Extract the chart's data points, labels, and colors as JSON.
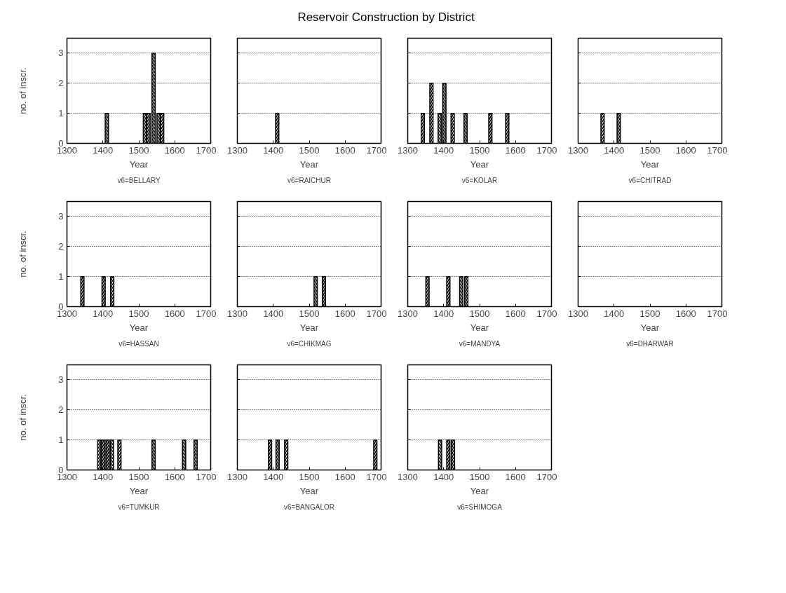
{
  "chart_data": [
    {
      "type": "other",
      "title": "Reservoir Construction by District"
    },
    {
      "type": "bar",
      "subtitle": "v6=BELLARY",
      "xlabel": "Year",
      "ylabel": "no. of inscr.",
      "x": [
        1411,
        1517,
        1527,
        1541,
        1555,
        1565
      ],
      "values": [
        1,
        1,
        1,
        3,
        1,
        1
      ],
      "color": "#000000",
      "xlim": [
        1300,
        1700
      ],
      "xticks": [
        1300,
        1400,
        1500,
        1600,
        1700
      ],
      "ylim": [
        0,
        3.5
      ],
      "yticks": [
        0,
        1,
        2,
        3
      ],
      "grid": "y"
    },
    {
      "type": "bar",
      "subtitle": "v6=RAICHUR",
      "xlabel": "Year",
      "x": [
        1411
      ],
      "values": [
        1
      ],
      "color": "#000000",
      "xlim": [
        1300,
        1700
      ],
      "xticks": [
        1300,
        1400,
        1500,
        1600,
        1700
      ],
      "ylim": [
        0,
        3.5
      ],
      "yticks": [
        0,
        1,
        2,
        3
      ],
      "grid": "y",
      "tick_labels": "x"
    },
    {
      "type": "bar",
      "subtitle": "v6=KOLAR",
      "xlabel": "Year",
      "x": [
        1342,
        1366,
        1389,
        1402,
        1425,
        1461,
        1530,
        1577
      ],
      "values": [
        1,
        2,
        1,
        2,
        1,
        1,
        1,
        1
      ],
      "color": "#000000",
      "xlim": [
        1300,
        1700
      ],
      "xticks": [
        1300,
        1400,
        1500,
        1600,
        1700
      ],
      "ylim": [
        0,
        3.5
      ],
      "yticks": [
        0,
        1,
        2,
        3
      ],
      "grid": "y",
      "tick_labels": "x"
    },
    {
      "type": "bar",
      "subtitle": "v6=CHITRAD",
      "xlabel": "Year",
      "x": [
        1368,
        1413
      ],
      "values": [
        1,
        1
      ],
      "color": "#000000",
      "xlim": [
        1300,
        1700
      ],
      "xticks": [
        1300,
        1400,
        1500,
        1600,
        1700
      ],
      "ylim": [
        0,
        3.5
      ],
      "yticks": [
        0,
        1,
        2,
        3
      ],
      "grid": "y",
      "tick_labels": "x"
    },
    {
      "type": "bar",
      "subtitle": "v6=HASSAN",
      "xlabel": "Year",
      "ylabel": "no. of inscr.",
      "x": [
        1343,
        1402,
        1426
      ],
      "values": [
        1,
        1,
        1
      ],
      "color": "#000000",
      "xlim": [
        1300,
        1700
      ],
      "xticks": [
        1300,
        1400,
        1500,
        1600,
        1700
      ],
      "ylim": [
        0,
        3.5
      ],
      "yticks": [
        0,
        1,
        2,
        3
      ],
      "grid": "y"
    },
    {
      "type": "bar",
      "subtitle": "v6=CHIKMAG",
      "xlabel": "Year",
      "x": [
        1518,
        1541
      ],
      "values": [
        1,
        1
      ],
      "color": "#000000",
      "xlim": [
        1300,
        1700
      ],
      "xticks": [
        1300,
        1400,
        1500,
        1600,
        1700
      ],
      "ylim": [
        0,
        3.5
      ],
      "yticks": [
        0,
        1,
        2,
        3
      ],
      "grid": "y",
      "tick_labels": "x"
    },
    {
      "type": "bar",
      "subtitle": "v6=MANDYA",
      "xlabel": "Year",
      "x": [
        1355,
        1413,
        1449,
        1463
      ],
      "values": [
        1,
        1,
        1,
        1
      ],
      "color": "#000000",
      "xlim": [
        1300,
        1700
      ],
      "xticks": [
        1300,
        1400,
        1500,
        1600,
        1700
      ],
      "ylim": [
        0,
        3.5
      ],
      "yticks": [
        0,
        1,
        2,
        3
      ],
      "grid": "y",
      "tick_labels": "x"
    },
    {
      "type": "bar",
      "subtitle": "v6=DHARWAR",
      "xlabel": "Year",
      "xlim": [
        1300,
        1700
      ],
      "xticks": [
        1300,
        1400,
        1500,
        1600,
        1700
      ],
      "ylim": [
        0,
        3.5
      ],
      "yticks": [
        0,
        1,
        2,
        3
      ],
      "grid": "y",
      "tick_labels": "x"
    },
    {
      "type": "bar",
      "subtitle": "v6=TUMKUR",
      "xlabel": "Year",
      "ylabel": "no. of inscr.",
      "x": [
        1390,
        1401,
        1413,
        1425,
        1446,
        1541,
        1626,
        1658
      ],
      "values": [
        1,
        1,
        1,
        1,
        1,
        1,
        1,
        1
      ],
      "color": "#000000",
      "xlim": [
        1300,
        1700
      ],
      "xticks": [
        1300,
        1400,
        1500,
        1600,
        1700
      ],
      "ylim": [
        0,
        3.5
      ],
      "yticks": [
        0,
        1,
        2,
        3
      ],
      "grid": "y"
    },
    {
      "type": "bar",
      "subtitle": "v6=BANGALOR",
      "xlabel": "Year",
      "x": [
        1391,
        1412,
        1436,
        1684
      ],
      "values": [
        1,
        1,
        1,
        1
      ],
      "color": "#000000",
      "xlim": [
        1300,
        1700
      ],
      "xticks": [
        1300,
        1400,
        1500,
        1600,
        1700
      ],
      "ylim": [
        0,
        3.5
      ],
      "yticks": [
        0,
        1,
        2,
        3
      ],
      "grid": "y",
      "tick_labels": "x"
    },
    {
      "type": "bar",
      "subtitle": "v6=SHIMOGA",
      "xlabel": "Year",
      "x": [
        1390,
        1413,
        1426
      ],
      "values": [
        1,
        1,
        1
      ],
      "color": "#000000",
      "xlim": [
        1300,
        1700
      ],
      "xticks": [
        1300,
        1400,
        1500,
        1600,
        1700
      ],
      "ylim": [
        0,
        3.5
      ],
      "yticks": [
        0,
        1,
        2,
        3
      ],
      "grid": "y",
      "tick_labels": "x"
    }
  ]
}
